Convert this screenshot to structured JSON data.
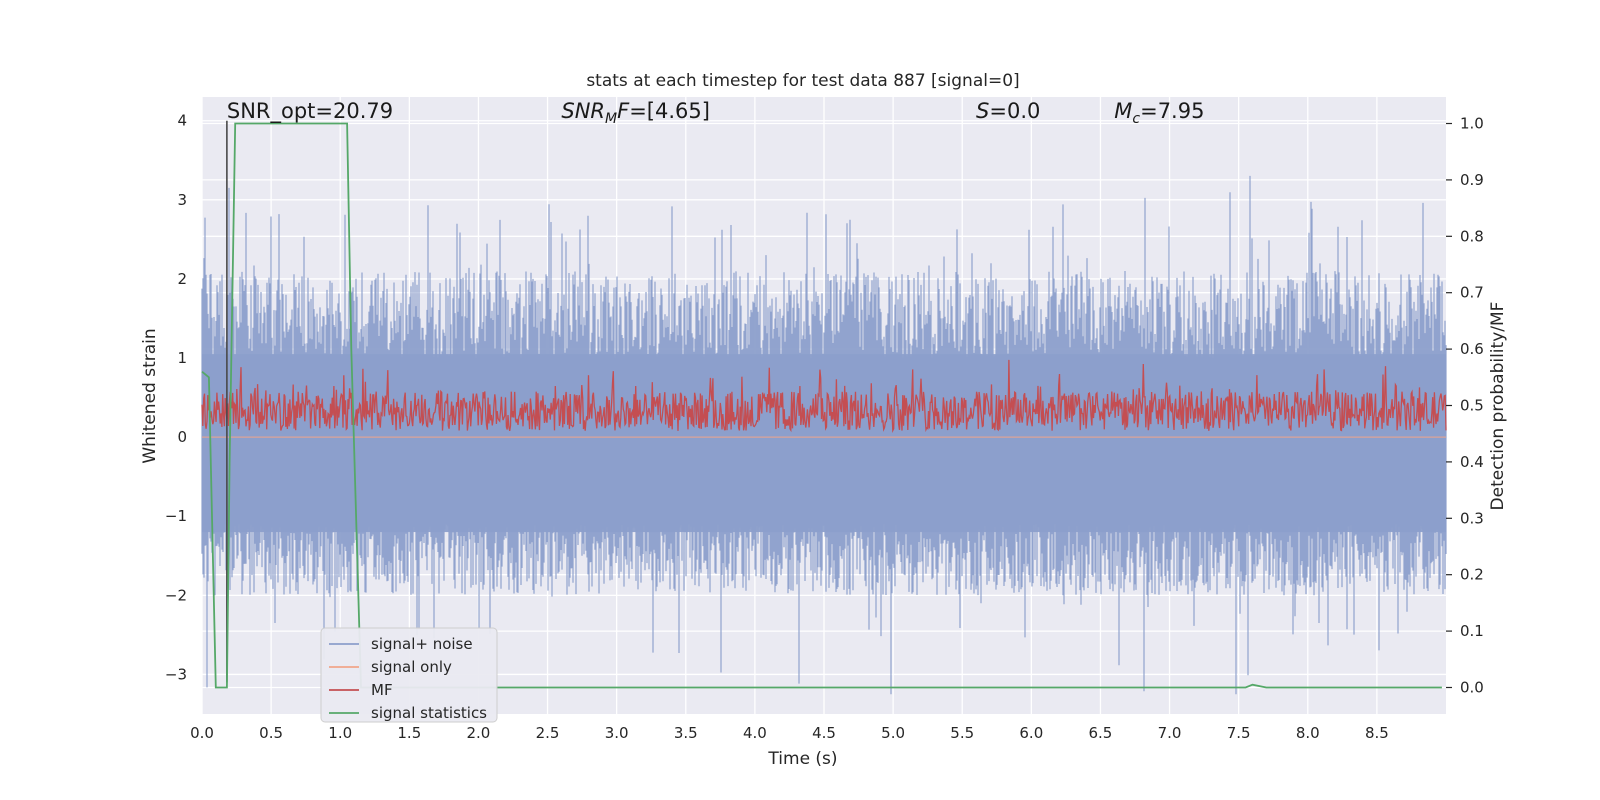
{
  "chart_data": {
    "type": "line",
    "title": "stats at each timestep for test data 887 [signal=0]",
    "xlabel": "Time (s)",
    "ylabel": "Whitened strain",
    "ylabel_right": "Detection probability/MF",
    "xlim": [
      0.0,
      9.0
    ],
    "ylim": [
      -3.5,
      4.3
    ],
    "ylim_right": [
      -0.047,
      1.047
    ],
    "xticks": [
      0.0,
      0.5,
      1.0,
      1.5,
      2.0,
      2.5,
      3.0,
      3.5,
      4.0,
      4.5,
      5.0,
      5.5,
      6.0,
      6.5,
      7.0,
      7.5,
      8.0,
      8.5
    ],
    "xtick_labels": [
      "0.0",
      "0.5",
      "1.0",
      "1.5",
      "2.0",
      "2.5",
      "3.0",
      "3.5",
      "4.0",
      "4.5",
      "5.0",
      "5.5",
      "6.0",
      "6.5",
      "7.0",
      "7.5",
      "8.0",
      "8.5"
    ],
    "yticks": [
      -3,
      -2,
      -1,
      0,
      1,
      2,
      3,
      4
    ],
    "ytick_labels": [
      "−3",
      "−2",
      "−1",
      "0",
      "1",
      "2",
      "3",
      "4"
    ],
    "yticks_right": [
      0.0,
      0.1,
      0.2,
      0.3,
      0.4,
      0.5,
      0.6,
      0.7,
      0.8,
      0.9,
      1.0
    ],
    "ytick_labels_right": [
      "0.0",
      "0.1",
      "0.2",
      "0.3",
      "0.4",
      "0.5",
      "0.6",
      "0.7",
      "0.8",
      "0.9",
      "1.0"
    ],
    "annotations": [
      {
        "name": "snr-opt",
        "text": "SNR_opt=20.79",
        "x": 0.18,
        "y": 4.1
      },
      {
        "name": "snr-mf",
        "text": "SNR_MF=[4.65]",
        "x": 2.6,
        "y": 4.1
      },
      {
        "name": "s-value",
        "text": "S=0.0",
        "x": 5.6,
        "y": 4.1
      },
      {
        "name": "chirp-mass",
        "text": "M_c=7.95",
        "x": 6.6,
        "y": 4.1
      }
    ],
    "series": [
      {
        "name": "signal+ noise",
        "color": "#8c9fcb",
        "axis": "left",
        "description": "whitened noisy strain, dense noise between about -3 and 4"
      },
      {
        "name": "signal only",
        "color": "#f0a58a",
        "axis": "left",
        "values_note": "flat at 0 (no signal)"
      },
      {
        "name": "MF",
        "color": "#c44e52",
        "axis": "right",
        "description": "matched-filter output fluctuating around 0.45-0.60"
      },
      {
        "name": "signal statistics",
        "color": "#55a868",
        "axis": "right",
        "x": [
          0.0,
          0.05,
          0.1,
          0.15,
          0.18,
          0.2,
          0.24,
          0.28,
          0.5,
          1.0,
          1.05,
          1.08,
          1.15,
          1.25,
          7.55,
          7.6,
          7.7,
          8.97
        ],
        "values": [
          0.56,
          0.55,
          0.0,
          -0.0,
          0.0,
          0.4,
          1.0,
          1.0,
          1.0,
          1.0,
          1.0,
          0.6,
          0.0,
          0.0,
          0.0,
          0.005,
          0.0,
          0.0
        ]
      },
      {
        "name": "threshold marker",
        "color": "#4a4a4a",
        "axis": "left",
        "x": [
          0.18,
          0.18
        ],
        "values": [
          -3.1,
          4.0
        ]
      }
    ],
    "legend": {
      "location": "lower-left",
      "entries": [
        {
          "label": "signal+ noise",
          "color": "#8c9fcb"
        },
        {
          "label": "signal only",
          "color": "#f0a58a"
        },
        {
          "label": "MF",
          "color": "#c44e52"
        },
        {
          "label": "signal statistics",
          "color": "#55a868"
        }
      ]
    },
    "style": {
      "plot_background": "#eaeaf2",
      "grid_color": "#ffffff",
      "text_color": "#262626"
    }
  }
}
